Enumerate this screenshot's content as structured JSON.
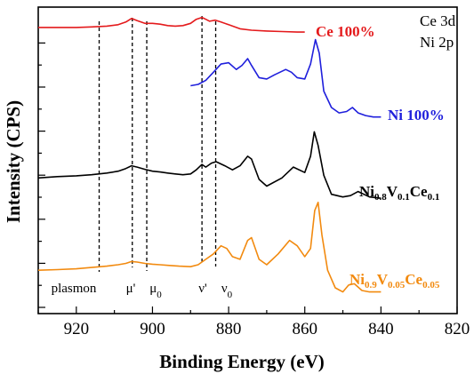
{
  "chart_data": {
    "type": "line",
    "xlabel": "Binding Energy (eV)",
    "ylabel": "Intensity (CPS)",
    "xlim": [
      930,
      820
    ],
    "x_reversed": true,
    "y_ticks_labeled": false,
    "x_ticks": [
      "920",
      "900",
      "880",
      "860",
      "840",
      "820"
    ],
    "corner_label": [
      "Ce 3d",
      "Ni 2p"
    ],
    "reference_lines": [
      {
        "label": "plasmon",
        "x": 914,
        "sub": ""
      },
      {
        "label": "μ'",
        "x": 905.3,
        "sub": ""
      },
      {
        "label": "μ",
        "x": 901.5,
        "sub": "0"
      },
      {
        "label": "ν'",
        "x": 887,
        "sub": ""
      },
      {
        "label": "ν",
        "x": 883.4,
        "sub": "0"
      }
    ],
    "series": [
      {
        "name": "Ce 100%",
        "name_parts": [
          {
            "t": "Ce 100%",
            "sub": false
          }
        ],
        "color": "#e41a1c",
        "x": [
          930,
          925,
          920,
          916,
          912,
          909,
          907,
          905.5,
          904,
          902,
          900,
          898,
          896,
          894,
          892,
          890,
          888.5,
          887,
          886,
          885,
          883.5,
          882,
          880,
          877,
          874,
          870,
          866,
          862,
          860
        ],
        "y": [
          9.15,
          9.15,
          9.15,
          9.17,
          9.2,
          9.25,
          9.35,
          9.48,
          9.4,
          9.3,
          9.3,
          9.27,
          9.22,
          9.2,
          9.22,
          9.3,
          9.45,
          9.52,
          9.45,
          9.38,
          9.42,
          9.35,
          9.25,
          9.1,
          9.05,
          9.02,
          9.0,
          8.98,
          8.98
        ]
      },
      {
        "name": "Ni 100%",
        "name_parts": [
          {
            "t": "Ni 100%",
            "sub": false
          }
        ],
        "color": "#1f1fdc",
        "x": [
          890,
          888,
          886,
          884,
          882,
          880,
          878,
          876.5,
          875,
          874,
          872,
          870,
          868,
          865,
          863.5,
          862,
          860,
          858.5,
          857.2,
          856.2,
          855,
          853,
          851,
          849,
          847.5,
          846,
          844,
          842,
          840
        ],
        "y": [
          7.0,
          7.05,
          7.2,
          7.5,
          7.8,
          7.85,
          7.6,
          7.75,
          8.0,
          7.75,
          7.3,
          7.25,
          7.4,
          7.6,
          7.5,
          7.3,
          7.25,
          7.8,
          8.7,
          8.2,
          6.8,
          6.2,
          6.0,
          6.05,
          6.2,
          6.0,
          5.9,
          5.85,
          5.85
        ]
      },
      {
        "name": "Ni0.8V0.1Ce0.1",
        "name_parts": [
          {
            "t": "Ni",
            "sub": false
          },
          {
            "t": "0.8",
            "sub": true
          },
          {
            "t": "V",
            "sub": false
          },
          {
            "t": "0.1",
            "sub": true
          },
          {
            "t": "Ce",
            "sub": false
          },
          {
            "t": "0.1",
            "sub": true
          }
        ],
        "color": "#000000",
        "x": [
          930,
          925,
          920,
          916,
          912,
          909,
          907,
          905.5,
          904,
          902,
          900,
          898,
          896,
          894,
          892,
          890,
          888.5,
          887,
          886,
          884.5,
          883.3,
          881,
          879,
          877,
          875,
          874,
          872,
          870,
          866,
          863,
          860,
          858.5,
          857.5,
          856.5,
          855,
          853,
          850,
          848,
          846,
          843,
          840
        ],
        "y": [
          3.6,
          3.65,
          3.68,
          3.72,
          3.78,
          3.85,
          3.95,
          4.05,
          4.0,
          3.92,
          3.85,
          3.82,
          3.78,
          3.75,
          3.72,
          3.75,
          3.9,
          4.1,
          4.0,
          4.15,
          4.2,
          4.05,
          3.9,
          4.05,
          4.4,
          4.3,
          3.55,
          3.3,
          3.6,
          4.0,
          3.8,
          4.4,
          5.3,
          4.8,
          3.7,
          3.0,
          2.9,
          2.95,
          3.1,
          2.9,
          2.85
        ]
      },
      {
        "name": "Ni0.9V0.05Ce0.05",
        "name_parts": [
          {
            "t": "Ni",
            "sub": false
          },
          {
            "t": "0.9",
            "sub": true
          },
          {
            "t": "V",
            "sub": false
          },
          {
            "t": "0.05",
            "sub": true
          },
          {
            "t": "Ce",
            "sub": false
          },
          {
            "t": "0.05",
            "sub": true
          }
        ],
        "color": "#f28a0f",
        "x": [
          930,
          925,
          920,
          916,
          912,
          909,
          907,
          905.5,
          904,
          902,
          900,
          898,
          896,
          893,
          890,
          888,
          886,
          884,
          882,
          880.5,
          879,
          877,
          875,
          874,
          872,
          870,
          867,
          864,
          862,
          860,
          858.5,
          857.4,
          856.5,
          855.5,
          854,
          852,
          850,
          848.5,
          847,
          845,
          843,
          840
        ],
        "y": [
          0.2,
          0.22,
          0.25,
          0.3,
          0.35,
          0.4,
          0.45,
          0.52,
          0.5,
          0.45,
          0.42,
          0.4,
          0.38,
          0.35,
          0.33,
          0.4,
          0.6,
          0.8,
          1.1,
          1.0,
          0.7,
          0.6,
          1.3,
          1.4,
          0.6,
          0.4,
          0.8,
          1.3,
          1.1,
          0.7,
          1.0,
          2.4,
          2.7,
          1.5,
          0.2,
          -0.45,
          -0.6,
          -0.35,
          -0.3,
          -0.55,
          -0.6,
          -0.6
        ]
      }
    ]
  }
}
